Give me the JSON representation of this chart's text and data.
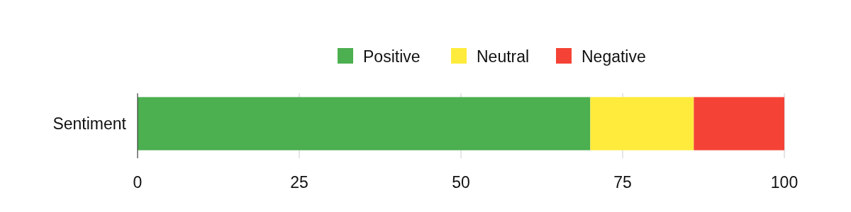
{
  "chart_data": {
    "type": "bar",
    "orientation": "horizontal",
    "stacked": true,
    "categories": [
      "Sentiment"
    ],
    "series": [
      {
        "name": "Positive",
        "color": "#4caf50",
        "values": [
          70
        ]
      },
      {
        "name": "Neutral",
        "color": "#ffeb3b",
        "values": [
          16
        ]
      },
      {
        "name": "Negative",
        "color": "#f44336",
        "values": [
          14
        ]
      }
    ],
    "xlim": [
      0,
      100
    ],
    "xticks": [
      0,
      25,
      50,
      75,
      100
    ],
    "grid": "x",
    "legend": "top"
  }
}
